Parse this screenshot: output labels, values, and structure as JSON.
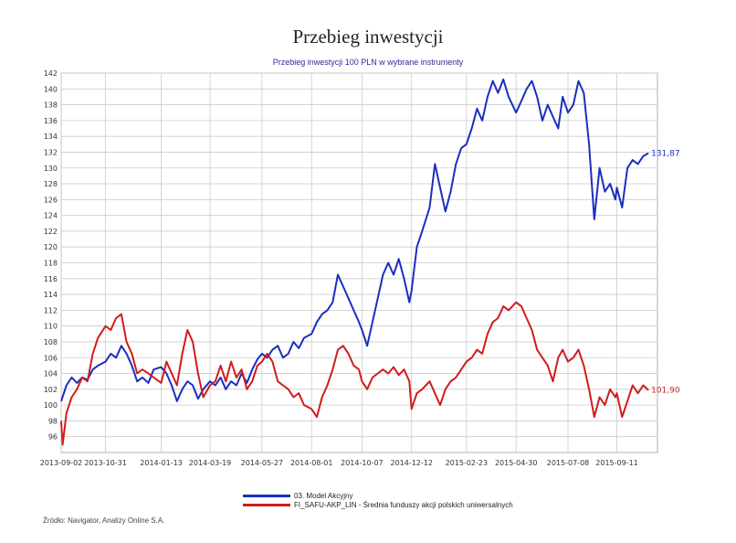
{
  "header": {
    "title": "Przebieg inwestycji"
  },
  "chart_data": {
    "type": "line",
    "title": "Przebieg inwestycji 100 PLN w wybrane instrumenty",
    "xlabel": "",
    "ylabel": "",
    "ylim": [
      94,
      142
    ],
    "yticks": [
      96,
      98,
      100,
      102,
      104,
      106,
      108,
      110,
      112,
      114,
      116,
      118,
      120,
      122,
      124,
      126,
      128,
      130,
      132,
      134,
      136,
      138,
      140,
      142
    ],
    "xlim": [
      "2013-09-02",
      "2015-11-04"
    ],
    "x_tick_labels": [
      "2013-09-02",
      "2013-10-31",
      "2014-01-13",
      "2014-03-19",
      "2014-05-27",
      "2014-08-01",
      "2014-10-07",
      "2014-12-12",
      "2015-02-23",
      "2015-04-30",
      "2015-07-08",
      "2015-09-11"
    ],
    "grid": true,
    "legend_position": "bottom",
    "series": [
      {
        "name": "03. Model Akcyjny",
        "color": "#1a2fbf",
        "end_label": "131,87",
        "points": [
          [
            "2013-09-02",
            100.5
          ],
          [
            "2013-09-09",
            102.5
          ],
          [
            "2013-09-16",
            103.5
          ],
          [
            "2013-09-23",
            102.8
          ],
          [
            "2013-09-30",
            103.5
          ],
          [
            "2013-10-07",
            103.2
          ],
          [
            "2013-10-14",
            104.5
          ],
          [
            "2013-10-21",
            105.0
          ],
          [
            "2013-10-31",
            105.5
          ],
          [
            "2013-11-07",
            106.5
          ],
          [
            "2013-11-14",
            106.0
          ],
          [
            "2013-11-21",
            107.5
          ],
          [
            "2013-11-28",
            106.5
          ],
          [
            "2013-12-05",
            105.0
          ],
          [
            "2013-12-12",
            103.0
          ],
          [
            "2013-12-19",
            103.5
          ],
          [
            "2013-12-27",
            102.8
          ],
          [
            "2014-01-03",
            104.5
          ],
          [
            "2014-01-13",
            104.8
          ],
          [
            "2014-01-20",
            104.0
          ],
          [
            "2014-01-27",
            102.5
          ],
          [
            "2014-02-03",
            100.5
          ],
          [
            "2014-02-10",
            102.0
          ],
          [
            "2014-02-17",
            103.0
          ],
          [
            "2014-02-24",
            102.5
          ],
          [
            "2014-03-03",
            100.8
          ],
          [
            "2014-03-10",
            102.0
          ],
          [
            "2014-03-19",
            103.0
          ],
          [
            "2014-03-26",
            102.5
          ],
          [
            "2014-04-02",
            103.5
          ],
          [
            "2014-04-09",
            102.0
          ],
          [
            "2014-04-16",
            103.0
          ],
          [
            "2014-04-23",
            102.5
          ],
          [
            "2014-04-30",
            104.0
          ],
          [
            "2014-05-07",
            102.8
          ],
          [
            "2014-05-14",
            104.5
          ],
          [
            "2014-05-21",
            105.8
          ],
          [
            "2014-05-27",
            106.5
          ],
          [
            "2014-06-03",
            106.0
          ],
          [
            "2014-06-10",
            107.0
          ],
          [
            "2014-06-17",
            107.5
          ],
          [
            "2014-06-24",
            106.0
          ],
          [
            "2014-07-01",
            106.5
          ],
          [
            "2014-07-08",
            108.0
          ],
          [
            "2014-07-15",
            107.2
          ],
          [
            "2014-07-22",
            108.5
          ],
          [
            "2014-08-01",
            109.0
          ],
          [
            "2014-08-08",
            110.5
          ],
          [
            "2014-08-15",
            111.5
          ],
          [
            "2014-08-22",
            112.0
          ],
          [
            "2014-08-29",
            113.0
          ],
          [
            "2014-09-05",
            116.5
          ],
          [
            "2014-09-12",
            115.0
          ],
          [
            "2014-09-19",
            113.5
          ],
          [
            "2014-09-26",
            112.0
          ],
          [
            "2014-10-03",
            110.5
          ],
          [
            "2014-10-07",
            109.5
          ],
          [
            "2014-10-14",
            107.5
          ],
          [
            "2014-10-21",
            110.5
          ],
          [
            "2014-10-28",
            113.5
          ],
          [
            "2014-11-04",
            116.5
          ],
          [
            "2014-11-11",
            118.0
          ],
          [
            "2014-11-18",
            116.5
          ],
          [
            "2014-11-25",
            118.5
          ],
          [
            "2014-12-02",
            116.0
          ],
          [
            "2014-12-09",
            113.0
          ],
          [
            "2014-12-12",
            114.5
          ],
          [
            "2014-12-19",
            120.0
          ],
          [
            "2014-12-26",
            122.0
          ],
          [
            "2015-01-05",
            125.0
          ],
          [
            "2015-01-12",
            130.5
          ],
          [
            "2015-01-19",
            127.5
          ],
          [
            "2015-01-26",
            124.5
          ],
          [
            "2015-02-02",
            127.0
          ],
          [
            "2015-02-09",
            130.5
          ],
          [
            "2015-02-16",
            132.5
          ],
          [
            "2015-02-23",
            133.0
          ],
          [
            "2015-03-02",
            135.0
          ],
          [
            "2015-03-09",
            137.5
          ],
          [
            "2015-03-16",
            136.0
          ],
          [
            "2015-03-23",
            139.0
          ],
          [
            "2015-03-30",
            141.0
          ],
          [
            "2015-04-06",
            139.5
          ],
          [
            "2015-04-13",
            141.2
          ],
          [
            "2015-04-20",
            139.0
          ],
          [
            "2015-04-30",
            137.0
          ],
          [
            "2015-05-07",
            138.5
          ],
          [
            "2015-05-14",
            140.0
          ],
          [
            "2015-05-21",
            141.0
          ],
          [
            "2015-05-28",
            139.0
          ],
          [
            "2015-06-04",
            136.0
          ],
          [
            "2015-06-11",
            138.0
          ],
          [
            "2015-06-18",
            136.5
          ],
          [
            "2015-06-25",
            135.0
          ],
          [
            "2015-07-01",
            139.0
          ],
          [
            "2015-07-08",
            137.0
          ],
          [
            "2015-07-15",
            138.0
          ],
          [
            "2015-07-22",
            141.0
          ],
          [
            "2015-07-29",
            139.5
          ],
          [
            "2015-08-05",
            133.0
          ],
          [
            "2015-08-12",
            123.5
          ],
          [
            "2015-08-19",
            130.0
          ],
          [
            "2015-08-26",
            127.0
          ],
          [
            "2015-09-02",
            128.0
          ],
          [
            "2015-09-09",
            126.0
          ],
          [
            "2015-09-11",
            127.5
          ],
          [
            "2015-09-18",
            125.0
          ],
          [
            "2015-09-25",
            130.0
          ],
          [
            "2015-10-02",
            131.0
          ],
          [
            "2015-10-09",
            130.5
          ],
          [
            "2015-10-16",
            131.5
          ],
          [
            "2015-10-23",
            131.87
          ]
        ]
      },
      {
        "name": "FI_SAFU-AKP_LIN - Średnia funduszy akcji polskich uniwersalnych",
        "color": "#d01c1c",
        "end_label": "101,90",
        "points": [
          [
            "2013-09-02",
            98.0
          ],
          [
            "2013-09-04",
            95.0
          ],
          [
            "2013-09-09",
            99.0
          ],
          [
            "2013-09-16",
            101.0
          ],
          [
            "2013-09-23",
            102.0
          ],
          [
            "2013-09-30",
            103.5
          ],
          [
            "2013-10-07",
            103.0
          ],
          [
            "2013-10-14",
            106.5
          ],
          [
            "2013-10-21",
            108.5
          ],
          [
            "2013-10-31",
            110.0
          ],
          [
            "2013-11-07",
            109.5
          ],
          [
            "2013-11-14",
            111.0
          ],
          [
            "2013-11-21",
            111.5
          ],
          [
            "2013-11-28",
            108.0
          ],
          [
            "2013-12-05",
            106.5
          ],
          [
            "2013-12-12",
            104.0
          ],
          [
            "2013-12-19",
            104.5
          ],
          [
            "2013-12-27",
            104.0
          ],
          [
            "2014-01-03",
            103.5
          ],
          [
            "2014-01-13",
            102.8
          ],
          [
            "2014-01-20",
            105.5
          ],
          [
            "2014-01-27",
            104.0
          ],
          [
            "2014-02-03",
            102.5
          ],
          [
            "2014-02-10",
            106.5
          ],
          [
            "2014-02-17",
            109.5
          ],
          [
            "2014-02-24",
            108.0
          ],
          [
            "2014-03-03",
            104.0
          ],
          [
            "2014-03-10",
            101.0
          ],
          [
            "2014-03-19",
            102.5
          ],
          [
            "2014-03-26",
            103.0
          ],
          [
            "2014-04-02",
            105.0
          ],
          [
            "2014-04-09",
            103.0
          ],
          [
            "2014-04-16",
            105.5
          ],
          [
            "2014-04-23",
            103.5
          ],
          [
            "2014-04-30",
            104.5
          ],
          [
            "2014-05-07",
            102.0
          ],
          [
            "2014-05-14",
            103.0
          ],
          [
            "2014-05-21",
            105.0
          ],
          [
            "2014-05-27",
            105.5
          ],
          [
            "2014-06-03",
            106.5
          ],
          [
            "2014-06-10",
            105.5
          ],
          [
            "2014-06-17",
            103.0
          ],
          [
            "2014-06-24",
            102.5
          ],
          [
            "2014-07-01",
            102.0
          ],
          [
            "2014-07-08",
            101.0
          ],
          [
            "2014-07-15",
            101.5
          ],
          [
            "2014-07-22",
            100.0
          ],
          [
            "2014-08-01",
            99.5
          ],
          [
            "2014-08-08",
            98.5
          ],
          [
            "2014-08-15",
            101.0
          ],
          [
            "2014-08-22",
            102.5
          ],
          [
            "2014-08-29",
            104.5
          ],
          [
            "2014-09-05",
            107.0
          ],
          [
            "2014-09-12",
            107.5
          ],
          [
            "2014-09-19",
            106.5
          ],
          [
            "2014-09-26",
            105.0
          ],
          [
            "2014-10-03",
            104.5
          ],
          [
            "2014-10-07",
            103.0
          ],
          [
            "2014-10-14",
            102.0
          ],
          [
            "2014-10-21",
            103.5
          ],
          [
            "2014-10-28",
            104.0
          ],
          [
            "2014-11-04",
            104.5
          ],
          [
            "2014-11-11",
            104.0
          ],
          [
            "2014-11-18",
            104.8
          ],
          [
            "2014-11-25",
            103.8
          ],
          [
            "2014-12-02",
            104.5
          ],
          [
            "2014-12-09",
            103.0
          ],
          [
            "2014-12-12",
            99.5
          ],
          [
            "2014-12-19",
            101.5
          ],
          [
            "2014-12-26",
            102.0
          ],
          [
            "2015-01-05",
            103.0
          ],
          [
            "2015-01-12",
            101.5
          ],
          [
            "2015-01-19",
            100.0
          ],
          [
            "2015-01-26",
            102.0
          ],
          [
            "2015-02-02",
            103.0
          ],
          [
            "2015-02-09",
            103.5
          ],
          [
            "2015-02-16",
            104.5
          ],
          [
            "2015-02-23",
            105.5
          ],
          [
            "2015-03-02",
            106.0
          ],
          [
            "2015-03-09",
            107.0
          ],
          [
            "2015-03-16",
            106.5
          ],
          [
            "2015-03-23",
            109.0
          ],
          [
            "2015-03-30",
            110.5
          ],
          [
            "2015-04-06",
            111.0
          ],
          [
            "2015-04-13",
            112.5
          ],
          [
            "2015-04-20",
            112.0
          ],
          [
            "2015-04-30",
            113.0
          ],
          [
            "2015-05-07",
            112.5
          ],
          [
            "2015-05-14",
            111.0
          ],
          [
            "2015-05-21",
            109.5
          ],
          [
            "2015-05-28",
            107.0
          ],
          [
            "2015-06-04",
            106.0
          ],
          [
            "2015-06-11",
            105.0
          ],
          [
            "2015-06-18",
            103.0
          ],
          [
            "2015-06-25",
            106.0
          ],
          [
            "2015-07-01",
            107.0
          ],
          [
            "2015-07-08",
            105.5
          ],
          [
            "2015-07-15",
            106.0
          ],
          [
            "2015-07-22",
            107.0
          ],
          [
            "2015-07-29",
            105.0
          ],
          [
            "2015-08-05",
            102.0
          ],
          [
            "2015-08-12",
            98.5
          ],
          [
            "2015-08-19",
            101.0
          ],
          [
            "2015-08-26",
            100.0
          ],
          [
            "2015-09-02",
            102.0
          ],
          [
            "2015-09-09",
            101.0
          ],
          [
            "2015-09-11",
            101.5
          ],
          [
            "2015-09-18",
            98.5
          ],
          [
            "2015-09-25",
            100.5
          ],
          [
            "2015-10-02",
            102.5
          ],
          [
            "2015-10-09",
            101.5
          ],
          [
            "2015-10-16",
            102.5
          ],
          [
            "2015-10-23",
            101.9
          ]
        ]
      }
    ]
  },
  "legend": {
    "items": [
      {
        "label": "03. Model Akcyjny",
        "color": "#1a2fbf"
      },
      {
        "label": "FI_SAFU-AKP_LIN - Średnia funduszy akcji polskich uniwersalnych",
        "color": "#d01c1c"
      }
    ]
  },
  "footer": {
    "source": "Źródło: Navigator, Analizy Online S.A."
  }
}
